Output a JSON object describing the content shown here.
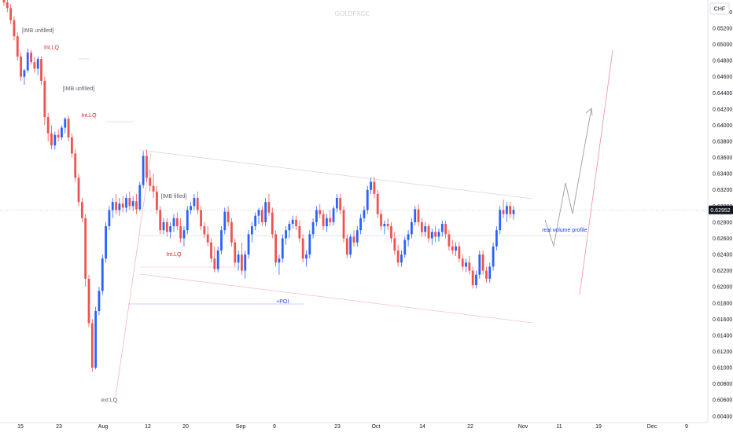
{
  "app": {
    "watermark": "GOLDFXCC",
    "currency": "CHF",
    "last_price": "0.62952"
  },
  "colors": {
    "up": "#2962ff",
    "down": "#ef5350",
    "accent_red": "#c62828",
    "accent_blue": "#1e40ff",
    "trend_line": "#f5c6cb",
    "path": "#9e9e9e"
  },
  "chart_data": {
    "type": "candlestick",
    "ylim": [
      0.6032,
      0.6555
    ],
    "y_ticks": [
      "0.65400",
      "0.65200",
      "0.65000",
      "0.64800",
      "0.64600",
      "0.64400",
      "0.64200",
      "0.64000",
      "0.63800",
      "0.63600",
      "0.63400",
      "0.63200",
      "0.63000",
      "0.62800",
      "0.62600",
      "0.62400",
      "0.62200",
      "0.62000",
      "0.61800",
      "0.61600",
      "0.61400",
      "0.61200",
      "0.61000",
      "0.60800",
      "0.60600",
      "0.60400"
    ],
    "x_ticks": [
      "15",
      "23",
      "Aug",
      "12",
      "20",
      "Sep",
      "9",
      "23",
      "Oct",
      "14",
      "22",
      "Nov",
      "11",
      "19",
      "Dec",
      "9"
    ],
    "candles": [
      [
        0.6555,
        0.656,
        0.6548,
        0.6552
      ],
      [
        0.6552,
        0.6556,
        0.654,
        0.6545
      ],
      [
        0.6545,
        0.655,
        0.6525,
        0.653
      ],
      [
        0.653,
        0.6535,
        0.6505,
        0.651
      ],
      [
        0.651,
        0.6515,
        0.648,
        0.6485
      ],
      [
        0.6485,
        0.649,
        0.6455,
        0.646
      ],
      [
        0.646,
        0.647,
        0.645,
        0.6468
      ],
      [
        0.6468,
        0.6495,
        0.6465,
        0.649
      ],
      [
        0.649,
        0.6493,
        0.6475,
        0.6478
      ],
      [
        0.6478,
        0.6485,
        0.6465,
        0.647
      ],
      [
        0.647,
        0.6485,
        0.6462,
        0.6482
      ],
      [
        0.6482,
        0.6485,
        0.645,
        0.6455
      ],
      [
        0.6455,
        0.646,
        0.64,
        0.641
      ],
      [
        0.641,
        0.6415,
        0.638,
        0.639
      ],
      [
        0.639,
        0.64,
        0.637,
        0.6375
      ],
      [
        0.6375,
        0.6392,
        0.637,
        0.6388
      ],
      [
        0.6388,
        0.6395,
        0.638,
        0.6385
      ],
      [
        0.6385,
        0.64,
        0.6382,
        0.6397
      ],
      [
        0.6397,
        0.641,
        0.639,
        0.6408
      ],
      [
        0.6408,
        0.6412,
        0.638,
        0.6385
      ],
      [
        0.6385,
        0.639,
        0.636,
        0.6365
      ],
      [
        0.6365,
        0.637,
        0.633,
        0.6335
      ],
      [
        0.6335,
        0.634,
        0.63,
        0.6305
      ],
      [
        0.6305,
        0.631,
        0.628,
        0.6285
      ],
      [
        0.6285,
        0.629,
        0.62,
        0.621
      ],
      [
        0.621,
        0.6215,
        0.615,
        0.6155
      ],
      [
        0.6155,
        0.616,
        0.6095,
        0.61
      ],
      [
        0.61,
        0.6175,
        0.6098,
        0.617
      ],
      [
        0.617,
        0.62,
        0.6165,
        0.6195
      ],
      [
        0.6195,
        0.624,
        0.619,
        0.6235
      ],
      [
        0.6235,
        0.628,
        0.623,
        0.6275
      ],
      [
        0.6275,
        0.63,
        0.627,
        0.6295
      ],
      [
        0.6295,
        0.631,
        0.6285,
        0.6305
      ],
      [
        0.6305,
        0.6315,
        0.629,
        0.6295
      ],
      [
        0.6295,
        0.631,
        0.6288,
        0.6303
      ],
      [
        0.6303,
        0.6312,
        0.6292,
        0.6298
      ],
      [
        0.6298,
        0.6315,
        0.6292,
        0.631
      ],
      [
        0.631,
        0.6318,
        0.6295,
        0.63
      ],
      [
        0.63,
        0.6312,
        0.6294,
        0.6306
      ],
      [
        0.6306,
        0.6315,
        0.629,
        0.6296
      ],
      [
        0.6296,
        0.633,
        0.6294,
        0.6326
      ],
      [
        0.6326,
        0.6368,
        0.6322,
        0.6362
      ],
      [
        0.6362,
        0.637,
        0.633,
        0.6335
      ],
      [
        0.6335,
        0.6345,
        0.6318,
        0.6325
      ],
      [
        0.6325,
        0.634,
        0.631,
        0.6318
      ],
      [
        0.6318,
        0.6325,
        0.629,
        0.6295
      ],
      [
        0.6295,
        0.63,
        0.6265,
        0.627
      ],
      [
        0.627,
        0.6285,
        0.6265,
        0.628
      ],
      [
        0.628,
        0.6285,
        0.6262,
        0.6268
      ],
      [
        0.6268,
        0.628,
        0.626,
        0.6275
      ],
      [
        0.6275,
        0.629,
        0.6268,
        0.6285
      ],
      [
        0.6285,
        0.6292,
        0.627,
        0.6275
      ],
      [
        0.6275,
        0.6285,
        0.6255,
        0.626
      ],
      [
        0.626,
        0.6275,
        0.625,
        0.627
      ],
      [
        0.627,
        0.63,
        0.6265,
        0.6295
      ],
      [
        0.6295,
        0.6305,
        0.629,
        0.63
      ],
      [
        0.63,
        0.6315,
        0.6295,
        0.631
      ],
      [
        0.631,
        0.6318,
        0.629,
        0.6295
      ],
      [
        0.6295,
        0.63,
        0.627,
        0.6275
      ],
      [
        0.6275,
        0.628,
        0.626,
        0.6265
      ],
      [
        0.6265,
        0.6275,
        0.625,
        0.6255
      ],
      [
        0.6255,
        0.626,
        0.623,
        0.6235
      ],
      [
        0.6235,
        0.625,
        0.6218,
        0.6222
      ],
      [
        0.6222,
        0.625,
        0.6218,
        0.6245
      ],
      [
        0.6245,
        0.6275,
        0.624,
        0.627
      ],
      [
        0.627,
        0.6298,
        0.6265,
        0.6293
      ],
      [
        0.6293,
        0.63,
        0.6275,
        0.628
      ],
      [
        0.628,
        0.6285,
        0.625,
        0.6255
      ],
      [
        0.6255,
        0.626,
        0.6225,
        0.623
      ],
      [
        0.623,
        0.6245,
        0.622,
        0.624
      ],
      [
        0.624,
        0.6255,
        0.6215,
        0.622
      ],
      [
        0.622,
        0.6245,
        0.621,
        0.624
      ],
      [
        0.624,
        0.627,
        0.6235,
        0.6265
      ],
      [
        0.6265,
        0.628,
        0.6255,
        0.6275
      ],
      [
        0.6275,
        0.6292,
        0.627,
        0.6288
      ],
      [
        0.6288,
        0.6298,
        0.6278,
        0.6295
      ],
      [
        0.6295,
        0.63,
        0.6275,
        0.628
      ],
      [
        0.628,
        0.631,
        0.6275,
        0.6305
      ],
      [
        0.6305,
        0.6315,
        0.6288,
        0.6292
      ],
      [
        0.6292,
        0.6298,
        0.626,
        0.6265
      ],
      [
        0.6265,
        0.627,
        0.6225,
        0.623
      ],
      [
        0.623,
        0.624,
        0.6215,
        0.6235
      ],
      [
        0.6235,
        0.6265,
        0.623,
        0.626
      ],
      [
        0.626,
        0.6275,
        0.6252,
        0.627
      ],
      [
        0.627,
        0.6282,
        0.626,
        0.6278
      ],
      [
        0.6278,
        0.6288,
        0.6272,
        0.6283
      ],
      [
        0.6283,
        0.6288,
        0.627,
        0.6275
      ],
      [
        0.6275,
        0.6282,
        0.6255,
        0.626
      ],
      [
        0.626,
        0.6265,
        0.623,
        0.6235
      ],
      [
        0.6235,
        0.6245,
        0.6225,
        0.624
      ],
      [
        0.624,
        0.627,
        0.6235,
        0.6265
      ],
      [
        0.6265,
        0.6285,
        0.626,
        0.628
      ],
      [
        0.628,
        0.63,
        0.6275,
        0.6295
      ],
      [
        0.6295,
        0.6302,
        0.6285,
        0.629
      ],
      [
        0.629,
        0.6295,
        0.627,
        0.6275
      ],
      [
        0.6275,
        0.629,
        0.6268,
        0.6285
      ],
      [
        0.6285,
        0.6295,
        0.6275,
        0.628
      ],
      [
        0.628,
        0.63,
        0.6276,
        0.6297
      ],
      [
        0.6297,
        0.6315,
        0.6292,
        0.631
      ],
      [
        0.631,
        0.6315,
        0.629,
        0.6295
      ],
      [
        0.6295,
        0.63,
        0.6255,
        0.626
      ],
      [
        0.626,
        0.6265,
        0.6235,
        0.624
      ],
      [
        0.624,
        0.6265,
        0.6236,
        0.6262
      ],
      [
        0.6262,
        0.627,
        0.625,
        0.6255
      ],
      [
        0.6255,
        0.6275,
        0.625,
        0.627
      ],
      [
        0.627,
        0.629,
        0.6265,
        0.6285
      ],
      [
        0.6285,
        0.63,
        0.628,
        0.6295
      ],
      [
        0.6295,
        0.6325,
        0.629,
        0.632
      ],
      [
        0.632,
        0.6335,
        0.6315,
        0.633
      ],
      [
        0.633,
        0.6336,
        0.631,
        0.6315
      ],
      [
        0.6315,
        0.632,
        0.6285,
        0.629
      ],
      [
        0.629,
        0.6295,
        0.627,
        0.6275
      ],
      [
        0.6275,
        0.6282,
        0.6265,
        0.6278
      ],
      [
        0.6278,
        0.6285,
        0.627,
        0.6275
      ],
      [
        0.6275,
        0.628,
        0.6255,
        0.626
      ],
      [
        0.626,
        0.6268,
        0.624,
        0.6245
      ],
      [
        0.6245,
        0.6252,
        0.6225,
        0.623
      ],
      [
        0.623,
        0.6245,
        0.6225,
        0.624
      ],
      [
        0.624,
        0.6262,
        0.6236,
        0.6258
      ],
      [
        0.6258,
        0.627,
        0.625,
        0.6265
      ],
      [
        0.6265,
        0.6285,
        0.626,
        0.628
      ],
      [
        0.628,
        0.63,
        0.6276,
        0.6296
      ],
      [
        0.6296,
        0.6302,
        0.6275,
        0.628
      ],
      [
        0.628,
        0.6285,
        0.6262,
        0.6268
      ],
      [
        0.6268,
        0.628,
        0.6262,
        0.6275
      ],
      [
        0.6275,
        0.6278,
        0.6255,
        0.626
      ],
      [
        0.626,
        0.6272,
        0.6252,
        0.6268
      ],
      [
        0.6268,
        0.6275,
        0.6255,
        0.6262
      ],
      [
        0.6262,
        0.6272,
        0.6256,
        0.6268
      ],
      [
        0.6268,
        0.6282,
        0.6262,
        0.6278
      ],
      [
        0.6278,
        0.6282,
        0.626,
        0.6265
      ],
      [
        0.6265,
        0.627,
        0.6245,
        0.625
      ],
      [
        0.625,
        0.6258,
        0.624,
        0.6245
      ],
      [
        0.6245,
        0.6255,
        0.6238,
        0.625
      ],
      [
        0.625,
        0.6255,
        0.623,
        0.6235
      ],
      [
        0.6235,
        0.624,
        0.622,
        0.6225
      ],
      [
        0.6225,
        0.6235,
        0.6218,
        0.623
      ],
      [
        0.623,
        0.6238,
        0.6215,
        0.622
      ],
      [
        0.622,
        0.6225,
        0.6198,
        0.6202
      ],
      [
        0.6202,
        0.622,
        0.6198,
        0.6215
      ],
      [
        0.6215,
        0.6245,
        0.621,
        0.624
      ],
      [
        0.624,
        0.6245,
        0.6215,
        0.622
      ],
      [
        0.622,
        0.6225,
        0.6205,
        0.621
      ],
      [
        0.621,
        0.623,
        0.6205,
        0.6225
      ],
      [
        0.6225,
        0.6255,
        0.622,
        0.625
      ],
      [
        0.625,
        0.6275,
        0.6245,
        0.627
      ],
      [
        0.627,
        0.63,
        0.6265,
        0.6295
      ],
      [
        0.6295,
        0.6308,
        0.6285,
        0.629
      ],
      [
        0.629,
        0.6305,
        0.628,
        0.63
      ],
      [
        0.63,
        0.6305,
        0.6285,
        0.629
      ],
      [
        0.629,
        0.63,
        0.6283,
        0.6295
      ]
    ],
    "annotations": [
      {
        "text": "[IMB unfilled]",
        "color": "gray",
        "x": 10,
        "y": 0.6515,
        "anchor": "middle"
      },
      {
        "text": "Int.LQ",
        "color": "red",
        "x": 14,
        "y": 0.6494,
        "anchor": "middle"
      },
      {
        "text": "[IMB unfilled]",
        "color": "gray",
        "x": 22,
        "y": 0.6443,
        "anchor": "middle"
      },
      {
        "text": "Int.LQ",
        "color": "red",
        "x": 25,
        "y": 0.641,
        "anchor": "middle"
      },
      {
        "text": "[IMB filled]",
        "color": "gray",
        "x": 50,
        "y": 0.631,
        "anchor": "middle"
      },
      {
        "text": "Int.LQ",
        "color": "red",
        "x": 50,
        "y": 0.6238,
        "anchor": "middle"
      },
      {
        "text": "+POI",
        "color": "blue",
        "x": 82,
        "y": 0.618,
        "anchor": "middle"
      },
      {
        "text": "ext.LQ",
        "color": "gray",
        "x": 31,
        "y": 0.6058,
        "anchor": "middle"
      },
      {
        "text": "real volume profile",
        "color": "blue",
        "x": 165,
        "y": 0.6268,
        "anchor": "middle"
      }
    ]
  }
}
